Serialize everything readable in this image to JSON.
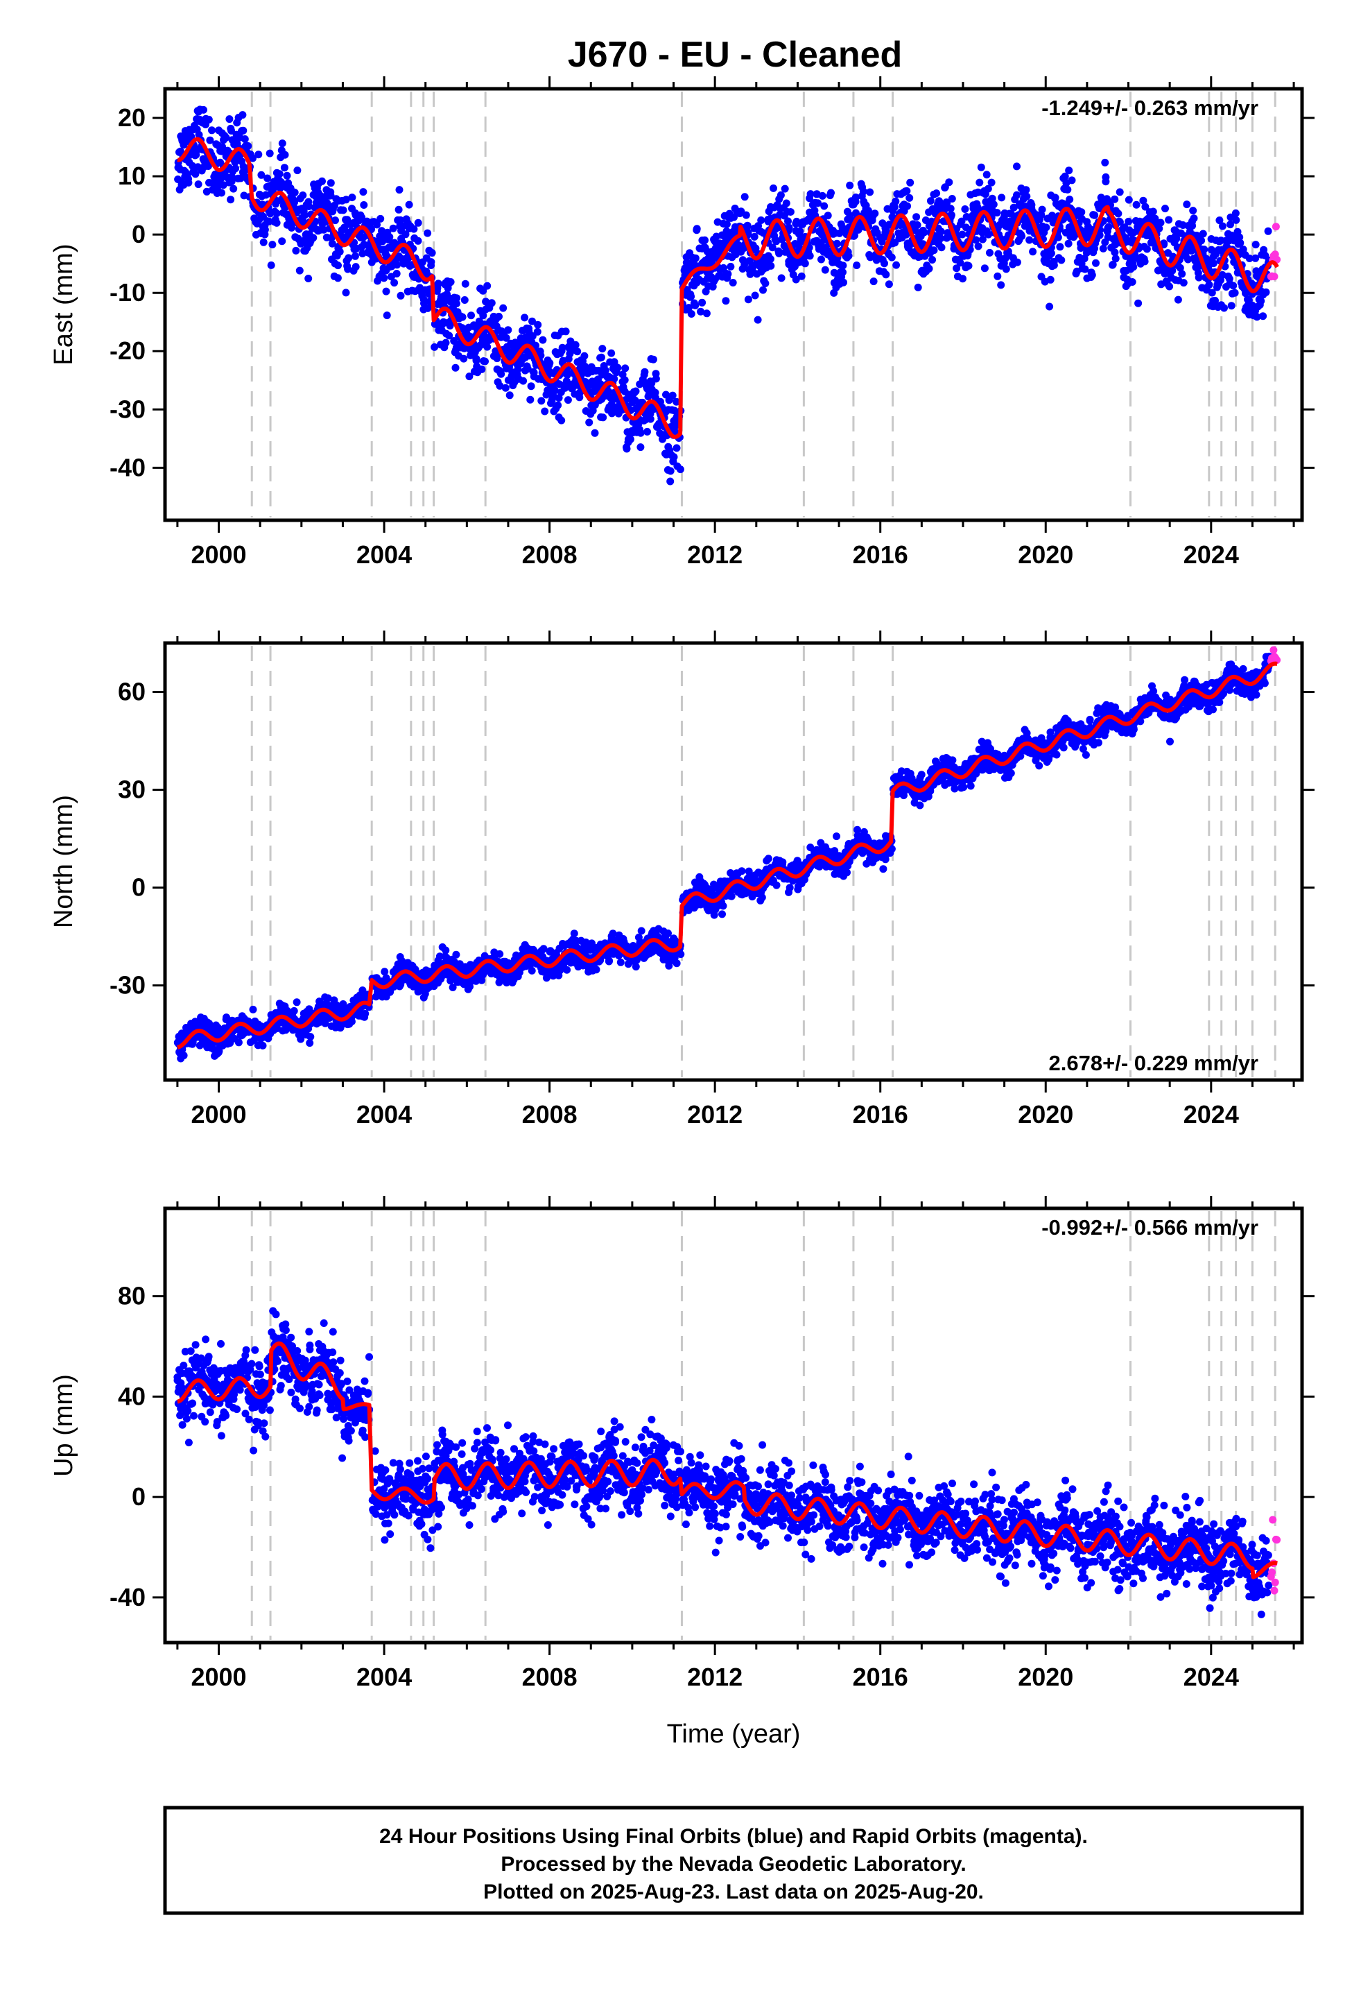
{
  "colors": {
    "final_points": "#0000ff",
    "rapid_points": "#ff33dd",
    "model_line": "#ff0000",
    "event_lines": "#c8c8c8",
    "frame": "#000000"
  },
  "chart_data": [
    {
      "type": "scatter",
      "title": "J670  - EU - Cleaned",
      "xlabel": "",
      "ylabel": "East (mm)",
      "xlim": [
        1998.7,
        2026.2
      ],
      "ylim": [
        -49,
        25
      ],
      "xticks": [
        2000,
        2004,
        2008,
        2012,
        2016,
        2020,
        2024
      ],
      "yticks": [
        -40,
        -30,
        -20,
        -10,
        0,
        10,
        20
      ],
      "grid": false,
      "rate_text": "-1.249+/- 0.263 mm/yr",
      "rate_position": "top-right",
      "event_lines": [
        2000.8,
        2001.25,
        2003.7,
        2004.65,
        2004.95,
        2005.2,
        2006.45,
        2011.2,
        2014.15,
        2015.35,
        2016.3,
        2022.05,
        2023.95,
        2024.25,
        2024.6,
        2025.0,
        2025.55
      ],
      "model_segments": [
        {
          "t0": 1999.0,
          "t1": 2000.75,
          "v0": 15.0,
          "v1": 12.0,
          "amp": 2.2
        },
        {
          "t0": 2000.8,
          "t1": 2005.17,
          "v0": 7.0,
          "v1": -6.0,
          "amp": 2.2
        },
        {
          "t0": 2005.2,
          "t1": 2011.17,
          "v0": -14.0,
          "v1": -33.0,
          "amp": 2.2
        },
        {
          "t0": 2011.2,
          "t1": 2012.6,
          "v0": -9.0,
          "v1": -1.0,
          "amp": 1.0
        },
        {
          "t0": 2012.6,
          "t1": 2021.5,
          "v0": -1.0,
          "v1": 1.5,
          "amp": 3.2
        },
        {
          "t0": 2021.5,
          "t1": 2025.6,
          "v0": 1.0,
          "v1": -8.0,
          "amp": 3.0
        }
      ],
      "scatter_sd": 3.2,
      "series": [
        {
          "name": "Final Orbits",
          "t_range": [
            1999.0,
            2025.4
          ]
        },
        {
          "name": "Rapid Orbits",
          "t_range": [
            2025.45,
            2025.6
          ]
        }
      ]
    },
    {
      "type": "scatter",
      "xlabel": "",
      "ylabel": "North (mm)",
      "xlim": [
        1998.7,
        2026.2
      ],
      "ylim": [
        -59,
        75
      ],
      "xticks": [
        2000,
        2004,
        2008,
        2012,
        2016,
        2020,
        2024
      ],
      "yticks": [
        -30,
        0,
        30,
        60
      ],
      "grid": false,
      "rate_text": "2.678+/- 0.229 mm/yr",
      "rate_position": "bottom-right",
      "event_lines": [
        2000.8,
        2001.25,
        2003.7,
        2004.65,
        2004.95,
        2005.2,
        2006.45,
        2011.2,
        2014.15,
        2015.35,
        2016.3,
        2022.05,
        2023.95,
        2024.25,
        2024.6,
        2025.0,
        2025.55
      ],
      "model_segments": [
        {
          "t0": 1999.0,
          "t1": 2003.65,
          "v0": -47.0,
          "v1": -37.0,
          "amp": 2.0
        },
        {
          "t0": 2003.7,
          "t1": 2011.17,
          "v0": -29.0,
          "v1": -17.0,
          "amp": 2.0
        },
        {
          "t0": 2011.2,
          "t1": 2016.27,
          "v0": -5.0,
          "v1": 14.0,
          "amp": 2.0
        },
        {
          "t0": 2016.3,
          "t1": 2025.6,
          "v0": 29.0,
          "v1": 67.0,
          "amp": 2.0
        }
      ],
      "scatter_sd": 2.0,
      "series": [
        {
          "name": "Final Orbits",
          "t_range": [
            1999.0,
            2025.4
          ]
        },
        {
          "name": "Rapid Orbits",
          "t_range": [
            2025.45,
            2025.6
          ]
        }
      ]
    },
    {
      "type": "scatter",
      "xlabel": "Time (year)",
      "ylabel": "Up (mm)",
      "xlim": [
        1998.7,
        2026.2
      ],
      "ylim": [
        -58,
        115
      ],
      "xticks": [
        2000,
        2004,
        2008,
        2012,
        2016,
        2020,
        2024
      ],
      "yticks": [
        -40,
        0,
        40,
        80
      ],
      "grid": false,
      "rate_text": "-0.992+/- 0.566 mm/yr",
      "rate_position": "top-right",
      "event_lines": [
        2000.8,
        2001.25,
        2003.7,
        2004.65,
        2004.95,
        2005.2,
        2006.45,
        2011.2,
        2014.15,
        2015.35,
        2016.3,
        2022.05,
        2023.95,
        2024.25,
        2024.6,
        2025.0,
        2025.55
      ],
      "model_segments": [
        {
          "t0": 1999.0,
          "t1": 2001.25,
          "v0": 42.0,
          "v1": 44.0,
          "amp": 4.0
        },
        {
          "t0": 2001.25,
          "t1": 2003.0,
          "v0": 58.0,
          "v1": 44.0,
          "amp": 5.0
        },
        {
          "t0": 2003.0,
          "t1": 2003.65,
          "v0": 36.0,
          "v1": 36.0,
          "amp": 1.0
        },
        {
          "t0": 2003.7,
          "t1": 2005.2,
          "v0": 2.0,
          "v1": 0.0,
          "amp": 2.5
        },
        {
          "t0": 2005.2,
          "t1": 2011.17,
          "v0": 8.0,
          "v1": 10.0,
          "amp": 5.0
        },
        {
          "t0": 2011.2,
          "t1": 2012.7,
          "v0": 2.0,
          "v1": 3.0,
          "amp": 3.0
        },
        {
          "t0": 2012.7,
          "t1": 2025.0,
          "v0": -2.0,
          "v1": -24.0,
          "amp": 4.5
        },
        {
          "t0": 2025.0,
          "t1": 2025.6,
          "v0": -30.0,
          "v1": -28.0,
          "amp": 2.0
        }
      ],
      "scatter_sd": 7.0,
      "series": [
        {
          "name": "Final Orbits",
          "t_range": [
            1999.0,
            2025.4
          ]
        },
        {
          "name": "Rapid Orbits",
          "t_range": [
            2025.45,
            2025.6
          ]
        }
      ]
    }
  ],
  "footer": {
    "line1": "24 Hour Positions Using Final Orbits (blue) and Rapid Orbits (magenta).",
    "line2": "Processed by the Nevada Geodetic Laboratory.",
    "line3": "Plotted on 2025-Aug-23. Last data on 2025-Aug-20."
  }
}
